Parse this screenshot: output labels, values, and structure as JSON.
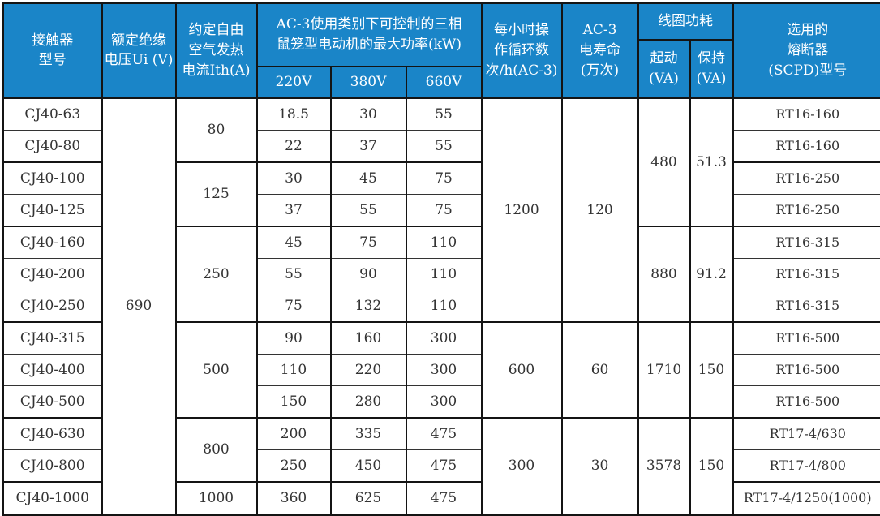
{
  "colors": {
    "header_bg": "#1a85c8",
    "header_text": "#ffffff",
    "border": "#141414",
    "body_text": "#333333",
    "body_bg": "#ffffff"
  },
  "header": {
    "contactor_model": "接触器\n型号",
    "rated_insulation_voltage": "额定绝缘\n电压Ui (V)",
    "thermal_current": "约定自由\n空气发热\n电流Ith(A)",
    "ac3_power_title": "AC-3使用类别下可控制的三相\n鼠笼型电动机的最大功率(kW)",
    "voltage_cols": [
      "220V",
      "380V",
      "660V"
    ],
    "ops_per_hour": "每小时操\n作循环数\n次/h(AC-3)",
    "electrical_life": "AC-3\n电寿命\n(万次)",
    "coil_power": "线圈功耗",
    "coil_start": "起动\n(VA)",
    "coil_hold": "保持\n(VA)",
    "fuse": "选用的\n熔断器\n(SCPD)型号"
  },
  "body": {
    "models": [
      "CJ40-63",
      "CJ40-80",
      "CJ40-100",
      "CJ40-125",
      "CJ40-160",
      "CJ40-200",
      "CJ40-250",
      "CJ40-315",
      "CJ40-400",
      "CJ40-500",
      "CJ40-630",
      "CJ40-800",
      "CJ40-1000"
    ],
    "rated_voltage": {
      "value": "690",
      "rows": 13
    },
    "thermal_current_groups": [
      {
        "value": "80",
        "rows": 2
      },
      {
        "value": "125",
        "rows": 2
      },
      {
        "value": "250",
        "rows": 3
      },
      {
        "value": "500",
        "rows": 3
      },
      {
        "value": "800",
        "rows": 2
      },
      {
        "value": "1000",
        "rows": 1
      }
    ],
    "power_220": [
      "18.5",
      "22",
      "30",
      "37",
      "45",
      "55",
      "75",
      "90",
      "110",
      "150",
      "200",
      "250",
      "360"
    ],
    "power_380": [
      "30",
      "37",
      "45",
      "55",
      "75",
      "90",
      "132",
      "160",
      "220",
      "280",
      "335",
      "450",
      "625"
    ],
    "power_660": [
      "55",
      "55",
      "75",
      "75",
      "110",
      "110",
      "110",
      "300",
      "300",
      "300",
      "475",
      "475",
      "475"
    ],
    "ops_groups": [
      {
        "value": "1200",
        "rows": 7
      },
      {
        "value": "600",
        "rows": 3
      },
      {
        "value": "300",
        "rows": 3
      }
    ],
    "life_groups": [
      {
        "value": "120",
        "rows": 7
      },
      {
        "value": "60",
        "rows": 3
      },
      {
        "value": "30",
        "rows": 3
      }
    ],
    "coil_start_groups": [
      {
        "value": "480",
        "rows": 4
      },
      {
        "value": "880",
        "rows": 3
      },
      {
        "value": "1710",
        "rows": 3
      },
      {
        "value": "3578",
        "rows": 3
      }
    ],
    "coil_hold_groups": [
      {
        "value": "51.3",
        "rows": 4
      },
      {
        "value": "91.2",
        "rows": 3
      },
      {
        "value": "150",
        "rows": 3
      },
      {
        "value": "150",
        "rows": 3
      }
    ],
    "fuses": [
      "RT16-160",
      "RT16-160",
      "RT16-250",
      "RT16-250",
      "RT16-315",
      "RT16-315",
      "RT16-315",
      "RT16-500",
      "RT16-500",
      "RT16-500",
      "RT17-4/630",
      "RT17-4/800",
      "RT17-4/1250(1000)"
    ]
  }
}
